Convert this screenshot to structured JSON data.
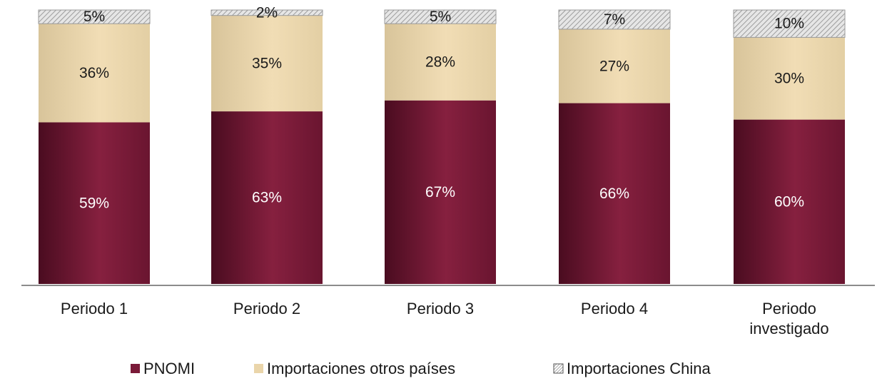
{
  "chart_data": {
    "type": "bar",
    "stacked": true,
    "categories": [
      [
        "Periodo 1"
      ],
      [
        "Periodo 2"
      ],
      [
        "Periodo 3"
      ],
      [
        "Periodo 4"
      ],
      [
        "Periodo",
        "investigado"
      ]
    ],
    "series": [
      {
        "name": "PNOMI",
        "values": [
          59,
          63,
          67,
          66,
          60
        ],
        "labels": [
          "59%",
          "63%",
          "67%",
          "66%",
          "60%"
        ],
        "color": "#7a1a38"
      },
      {
        "name": "Importaciones otros países",
        "values": [
          36,
          35,
          28,
          27,
          30
        ],
        "labels": [
          "36%",
          "35%",
          "28%",
          "27%",
          "30%"
        ],
        "color": "#ead5aa"
      },
      {
        "name": "Importaciones China",
        "values": [
          5,
          2,
          5,
          7,
          10
        ],
        "labels": [
          "5%",
          "2%",
          "5%",
          "7%",
          "10%"
        ],
        "color": "#c8c8c8",
        "pattern": "diagonal-hatch"
      }
    ],
    "ylim": [
      0,
      100
    ],
    "legend": "bottom",
    "grid": false
  }
}
